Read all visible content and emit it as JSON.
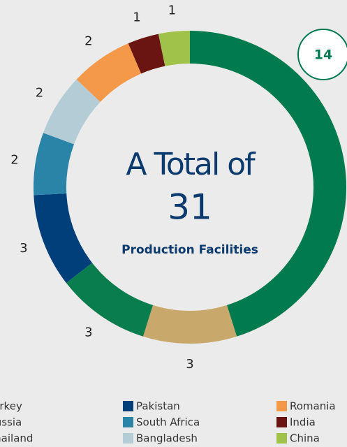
{
  "chart_data": {
    "type": "donut",
    "categories": [
      "Turkey",
      "Thailand",
      "Russia",
      "Pakistan",
      "South Africa",
      "Bangladesh",
      "Romania",
      "India",
      "China"
    ],
    "values": [
      14,
      3,
      3,
      3,
      2,
      2,
      2,
      1,
      1
    ],
    "colors": [
      "#007a4e",
      "#c9a86c",
      "#0a7d4f",
      "#003f7a",
      "#2a84a8",
      "#b4ccd6",
      "#f4994a",
      "#6a1511",
      "#a1c24a"
    ],
    "center_text": [
      "A Total of",
      "31",
      "Production Facilities"
    ]
  }
}
